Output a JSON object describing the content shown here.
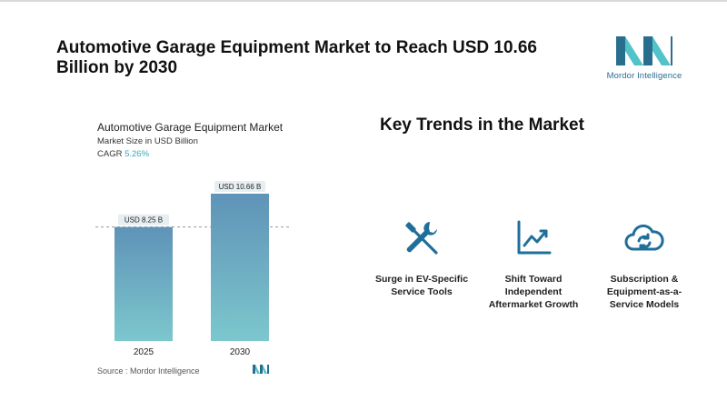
{
  "header": {
    "headline": "Automotive Garage Equipment Market to Reach USD 10.66 Billion by 2030",
    "logo_text": "Mordor Intelligence"
  },
  "chart_data": {
    "type": "bar",
    "title": "Automotive Garage Equipment Market",
    "subtitle": "Market Size in USD Billion",
    "cagr_label": "CAGR",
    "cagr_value": "5.26%",
    "categories": [
      "2025",
      "2030"
    ],
    "values": [
      8.25,
      10.66
    ],
    "data_labels": [
      "USD 8.25 B",
      "USD 10.66 B"
    ],
    "reference_line": 8.25,
    "ylim": [
      0,
      10.66
    ],
    "grid": false,
    "colors": {
      "bar_top": "#5f93b8",
      "bar_bottom": "#7cc7cd",
      "label_bg": "#e6eef2",
      "ref_line": "#9a9a9a"
    }
  },
  "source": "Source : Mordor Intelligence",
  "trends": {
    "title": "Key Trends in the Market",
    "items": [
      {
        "icon": "tools-icon",
        "label_lines": [
          "Surge in EV-Specific",
          "Service Tools"
        ]
      },
      {
        "icon": "growth-chart-icon",
        "label_lines": [
          "Shift Toward",
          "Independent",
          "Aftermarket Growth"
        ]
      },
      {
        "icon": "cloud-sync-icon",
        "label_lines": [
          "Subscription &",
          "Equipment-as-a-",
          "Service Models"
        ]
      }
    ]
  },
  "colors": {
    "icon": "#1f6f9a",
    "logo_dark": "#2a6e8e",
    "logo_light": "#52c3c9"
  }
}
